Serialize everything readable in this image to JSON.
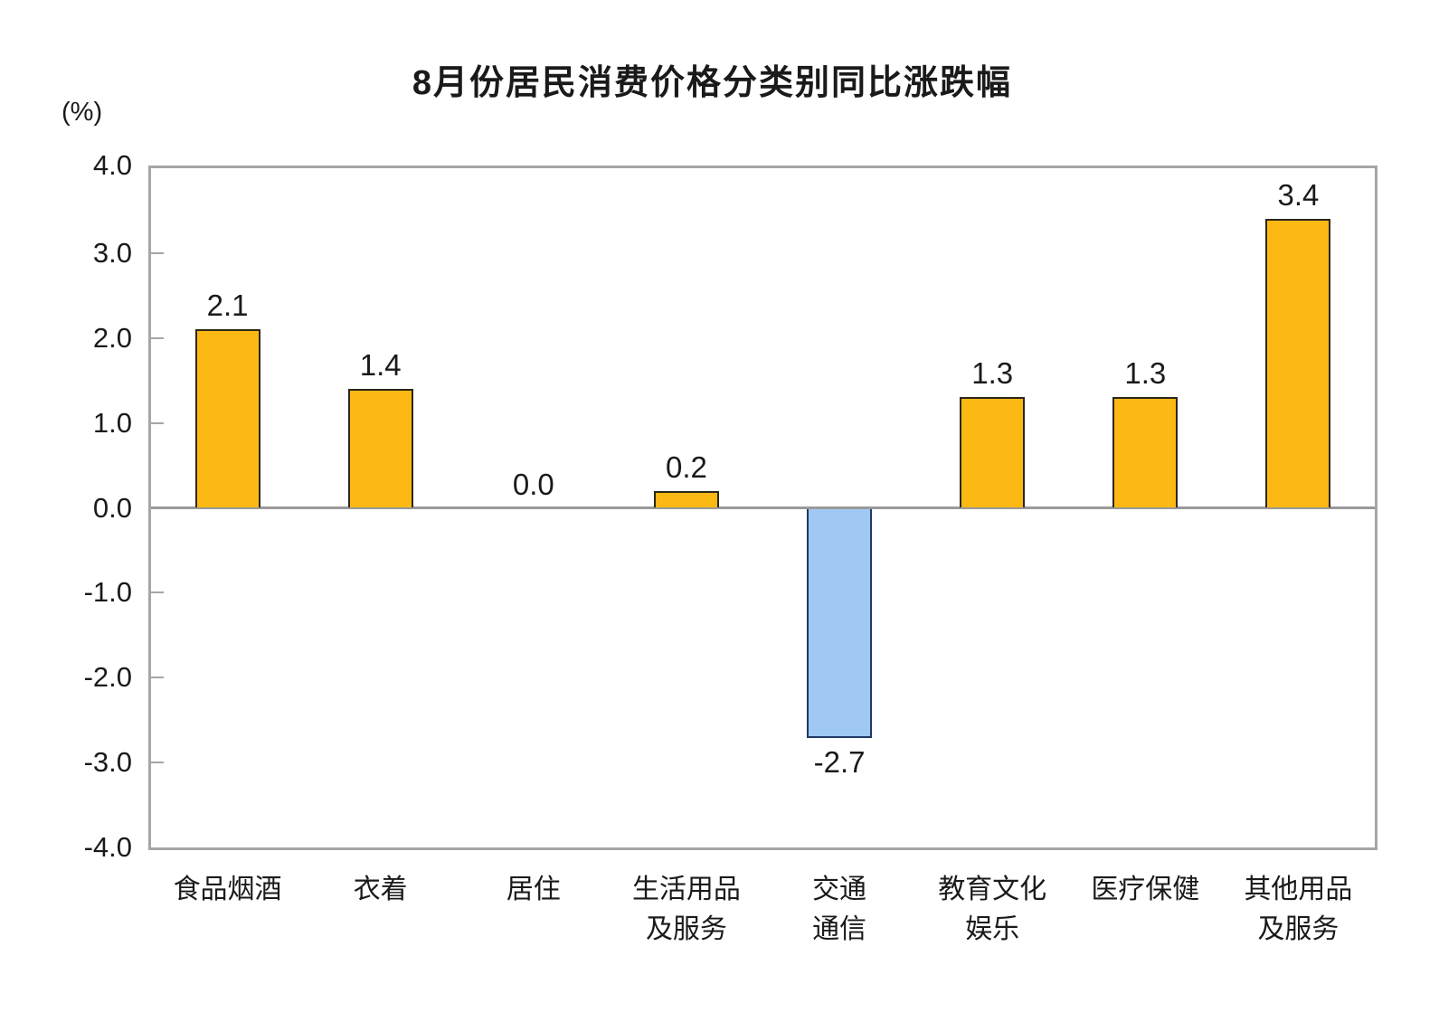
{
  "chart_data": {
    "type": "bar",
    "title": "8月份居民消费价格分类别同比涨跌幅",
    "unit_label": "(%)",
    "categories": [
      "食品烟酒",
      "衣着",
      "居住",
      "生活用品\n及服务",
      "交通\n通信",
      "教育文化\n娱乐",
      "医疗保健",
      "其他用品\n及服务"
    ],
    "values": [
      2.1,
      1.4,
      0.0,
      0.2,
      -2.7,
      1.3,
      1.3,
      3.4
    ],
    "value_labels": [
      "2.1",
      "1.4",
      "0.0",
      "0.2",
      "-2.7",
      "1.3",
      "1.3",
      "3.4"
    ],
    "y_ticks": [
      "4.0",
      "3.0",
      "2.0",
      "1.0",
      "0.0",
      "-1.0",
      "-2.0",
      "-3.0",
      "-4.0"
    ],
    "ylim": [
      -4.0,
      4.0
    ],
    "xlabel": "",
    "ylabel": "(%)",
    "grid": "off",
    "legend": "none",
    "colors": {
      "positive_bar": "#FCB813",
      "positive_border": "#2B2619",
      "negative_bar": "#9FC9F3",
      "negative_border": "#1F3864",
      "frame": "#A6A6A6",
      "zero_line": "#999999",
      "text": "#1A1A1A"
    }
  }
}
